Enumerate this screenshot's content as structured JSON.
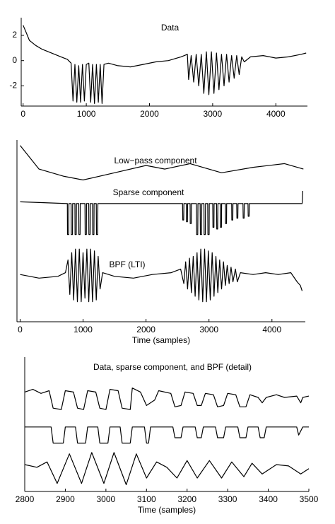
{
  "chart_data": [
    {
      "type": "line",
      "title": "Data",
      "color": "#000000",
      "xlim": [
        -30,
        4500
      ],
      "ylim": [
        -3.6,
        3.4
      ],
      "xticks": [
        0,
        1000,
        2000,
        3000,
        4000
      ],
      "yticks": [
        -2,
        0,
        2
      ],
      "x": [
        0,
        50,
        100,
        200,
        300,
        400,
        500,
        600,
        700,
        760,
        790,
        820,
        850,
        880,
        910,
        940,
        970,
        1000,
        1040,
        1070,
        1100,
        1130,
        1160,
        1190,
        1220,
        1250,
        1280,
        1350,
        1500,
        1700,
        1900,
        2100,
        2300,
        2500,
        2600,
        2620,
        2660,
        2700,
        2740,
        2780,
        2820,
        2860,
        2900,
        2940,
        2980,
        3020,
        3060,
        3100,
        3140,
        3180,
        3220,
        3260,
        3300,
        3340,
        3380,
        3420,
        3460,
        3500,
        3600,
        3800,
        4000,
        4200,
        4400,
        4480
      ],
      "values": [
        2.8,
        2.2,
        1.6,
        1.2,
        0.9,
        0.7,
        0.5,
        0.3,
        0.1,
        -0.2,
        -3.2,
        -0.3,
        -3.3,
        -0.4,
        -3.3,
        -0.3,
        -3.2,
        -0.3,
        -0.2,
        -3.3,
        -0.3,
        -3.4,
        -0.3,
        -3.3,
        -0.3,
        -3.4,
        -0.3,
        -0.2,
        -0.4,
        -0.5,
        -0.3,
        -0.1,
        0,
        0.3,
        0.5,
        -1.5,
        0.4,
        -1.7,
        0.5,
        -2.0,
        0.5,
        -2.6,
        0.7,
        -2.7,
        0.7,
        -2.6,
        0.6,
        -2.3,
        0.5,
        -2.0,
        0.5,
        -1.7,
        0.4,
        -1.4,
        0.4,
        -1.1,
        0.3,
        -0.1,
        0.3,
        0.4,
        0.2,
        0.3,
        0.5,
        0.6
      ]
    },
    {
      "type": "line",
      "xlabel": "Time (samples)",
      "color": "#000000",
      "xlim": [
        -50,
        4530
      ],
      "ylim": [
        0,
        100
      ],
      "xticks": [
        0,
        1000,
        2000,
        3000,
        4000
      ],
      "series": [
        {
          "name": "Low−pass component",
          "x": [
            0,
            300,
            700,
            1000,
            1500,
            2000,
            2300,
            2700,
            3200,
            3700,
            4200,
            4500
          ],
          "values": [
            97,
            84,
            80,
            78,
            82,
            86,
            84,
            87,
            82,
            85,
            87,
            84
          ]
        },
        {
          "name": "Sparse component",
          "x": [
            0,
            750,
            753,
            772,
            775,
            810,
            813,
            832,
            835,
            870,
            873,
            892,
            895,
            930,
            933,
            952,
            955,
            1030,
            1033,
            1052,
            1055,
            1090,
            1093,
            1112,
            1115,
            1150,
            1153,
            1172,
            1175,
            1210,
            1213,
            1232,
            1235,
            2580,
            2583,
            2598,
            2601,
            2640,
            2643,
            2658,
            2661,
            2700,
            2703,
            2718,
            2721,
            2800,
            2803,
            2822,
            2825,
            2860,
            2863,
            2882,
            2885,
            2920,
            2923,
            2942,
            2945,
            2980,
            2983,
            3002,
            3005,
            3060,
            3063,
            3078,
            3081,
            3120,
            3123,
            3138,
            3141,
            3180,
            3183,
            3198,
            3201,
            3260,
            3263,
            3278,
            3281,
            3360,
            3363,
            3378,
            3381,
            3440,
            3443,
            3458,
            3461,
            3540,
            3543,
            3558,
            3561,
            3620,
            3623,
            3638,
            3641,
            4480,
            4490
          ],
          "values": [
            66,
            65,
            48,
            48,
            65,
            65,
            48,
            48,
            65,
            65,
            48,
            48,
            65,
            65,
            48,
            48,
            65,
            65,
            48,
            48,
            65,
            65,
            48,
            48,
            65,
            65,
            48,
            48,
            65,
            65,
            48,
            48,
            65,
            65,
            56,
            56,
            65,
            65,
            55,
            55,
            65,
            65,
            54,
            54,
            65,
            65,
            48,
            48,
            65,
            65,
            48,
            48,
            65,
            65,
            48,
            48,
            65,
            65,
            48,
            48,
            65,
            65,
            52,
            52,
            65,
            65,
            51,
            51,
            65,
            65,
            52,
            52,
            65,
            65,
            54,
            54,
            65,
            65,
            56,
            56,
            65,
            65,
            57,
            57,
            65,
            65,
            57,
            57,
            65,
            65,
            58,
            58,
            65,
            65,
            72
          ]
        },
        {
          "name": "BPF (LTI)",
          "x": [
            0,
            300,
            600,
            720,
            760,
            790,
            820,
            850,
            880,
            910,
            940,
            970,
            1000,
            1030,
            1060,
            1090,
            1120,
            1150,
            1180,
            1210,
            1240,
            1270,
            1310,
            1500,
            1800,
            2100,
            2400,
            2550,
            2600,
            2630,
            2660,
            2690,
            2720,
            2750,
            2780,
            2810,
            2840,
            2870,
            2900,
            2930,
            2960,
            2990,
            3020,
            3050,
            3080,
            3110,
            3140,
            3170,
            3200,
            3230,
            3260,
            3290,
            3320,
            3350,
            3380,
            3420,
            3450,
            3500,
            3700,
            3900,
            4100,
            4300,
            4400,
            4450,
            4480
          ],
          "values": [
            26,
            24,
            25,
            27,
            34,
            15,
            38,
            12,
            40,
            11,
            40,
            11,
            38,
            13,
            40,
            11,
            40,
            11,
            39,
            12,
            36,
            18,
            27,
            25,
            24,
            26,
            27,
            29,
            21,
            33,
            18,
            35,
            16,
            36,
            14,
            38,
            12,
            40,
            11,
            40,
            11,
            39,
            12,
            38,
            14,
            36,
            16,
            34,
            18,
            33,
            20,
            31,
            21,
            30,
            22,
            29,
            22,
            27,
            26,
            27,
            26,
            27,
            22,
            20,
            17
          ]
        }
      ]
    },
    {
      "type": "line",
      "title": "Data, sparse component, and BPF (detail)",
      "xlabel": "Time (samples)",
      "color": "#000000",
      "xlim": [
        2800,
        3500
      ],
      "ylim": [
        0,
        100
      ],
      "xticks": [
        2800,
        2900,
        3000,
        3100,
        3200,
        3300,
        3400,
        3500
      ],
      "series": [
        {
          "x": [
            2800,
            2820,
            2840,
            2860,
            2870,
            2890,
            2900,
            2920,
            2930,
            2945,
            2955,
            2975,
            2985,
            3000,
            3010,
            3030,
            3040,
            3060,
            3065,
            3085,
            3100,
            3120,
            3130,
            3160,
            3170,
            3185,
            3195,
            3215,
            3225,
            3235,
            3245,
            3265,
            3275,
            3290,
            3300,
            3320,
            3330,
            3345,
            3355,
            3375,
            3385,
            3395,
            3420,
            3440,
            3470,
            3480,
            3485,
            3500
          ],
          "values": [
            74,
            76,
            73,
            75,
            62,
            61,
            75,
            74,
            62,
            61,
            75,
            74,
            62,
            61,
            76,
            75,
            62,
            61,
            77,
            74,
            64,
            68,
            75,
            73,
            63,
            64,
            74,
            73,
            64,
            64,
            73,
            72,
            63,
            64,
            73,
            72,
            63,
            63,
            72,
            70,
            66,
            70,
            72,
            70,
            71,
            66,
            70,
            71
          ]
        },
        {
          "x": [
            2800,
            2865,
            2870,
            2895,
            2900,
            2925,
            2930,
            2950,
            2955,
            2980,
            2985,
            3005,
            3010,
            3035,
            3040,
            3060,
            3065,
            3095,
            3100,
            3105,
            3110,
            3165,
            3170,
            3185,
            3190,
            3220,
            3225,
            3235,
            3240,
            3270,
            3275,
            3290,
            3295,
            3325,
            3330,
            3345,
            3350,
            3375,
            3380,
            3390,
            3395,
            3470,
            3475,
            3485,
            3500
          ],
          "values": [
            48,
            48,
            36,
            36,
            48,
            48,
            36,
            36,
            48,
            48,
            36,
            36,
            48,
            48,
            36,
            36,
            48,
            48,
            36,
            36,
            48,
            48,
            40,
            40,
            48,
            48,
            40,
            40,
            48,
            48,
            40,
            40,
            48,
            48,
            40,
            40,
            48,
            48,
            40,
            40,
            48,
            48,
            42,
            48,
            48
          ]
        },
        {
          "x": [
            2800,
            2830,
            2855,
            2880,
            2910,
            2940,
            2965,
            2995,
            3020,
            3050,
            3075,
            3100,
            3125,
            3150,
            3175,
            3200,
            3225,
            3255,
            3285,
            3310,
            3340,
            3360,
            3385,
            3420,
            3450,
            3480,
            3500
          ],
          "values": [
            20,
            18,
            22,
            6,
            28,
            6,
            29,
            6,
            29,
            5,
            28,
            10,
            22,
            18,
            10,
            23,
            10,
            23,
            10,
            22,
            11,
            21,
            13,
            20,
            19,
            13,
            17
          ]
        }
      ]
    }
  ]
}
